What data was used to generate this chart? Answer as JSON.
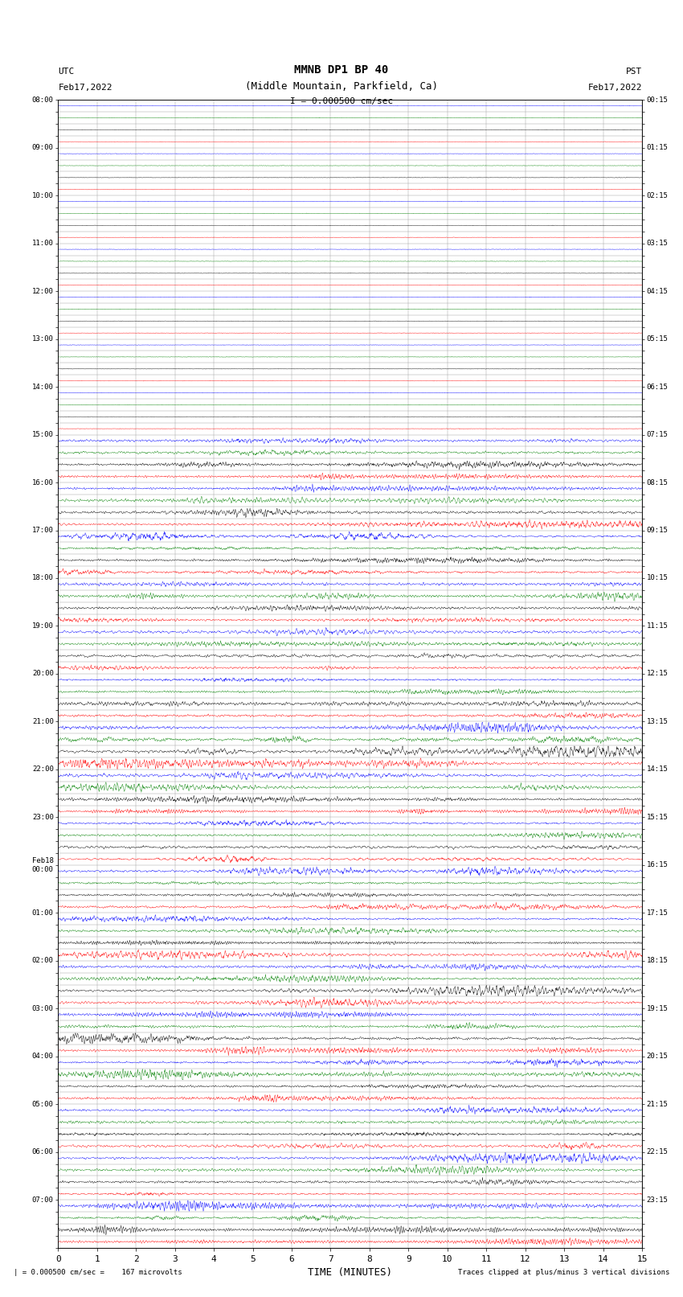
{
  "title_line1": "MMNB DP1 BP 40",
  "title_line2": "(Middle Mountain, Parkfield, Ca)",
  "scale_text": "I = 0.000500 cm/sec",
  "utc_label": "UTC",
  "pst_label": "PST",
  "date_left": "Feb17,2022",
  "date_right": "Feb17,2022",
  "xlabel": "TIME (MINUTES)",
  "footer_left": "| = 0.000500 cm/sec =    167 microvolts",
  "footer_right": "Traces clipped at plus/minus 3 vertical divisions",
  "utc_row_labels": {
    "0": "08:00",
    "4": "09:00",
    "8": "10:00",
    "12": "11:00",
    "16": "12:00",
    "20": "13:00",
    "24": "14:00",
    "28": "15:00",
    "32": "16:00",
    "36": "17:00",
    "40": "18:00",
    "44": "19:00",
    "48": "20:00",
    "52": "21:00",
    "56": "22:00",
    "60": "23:00",
    "64": "Feb18\n00:00",
    "68": "01:00",
    "72": "02:00",
    "76": "03:00",
    "80": "04:00",
    "84": "05:00",
    "88": "06:00",
    "92": "07:00"
  },
  "pst_row_labels": {
    "0": "00:15",
    "4": "01:15",
    "8": "02:15",
    "12": "03:15",
    "16": "04:15",
    "20": "05:15",
    "24": "06:15",
    "28": "07:15",
    "32": "08:15",
    "36": "09:15",
    "40": "10:15",
    "44": "11:15",
    "48": "12:15",
    "52": "13:15",
    "56": "14:15",
    "60": "15:15",
    "64": "16:15",
    "68": "17:15",
    "72": "18:15",
    "76": "19:15",
    "80": "20:15",
    "84": "21:15",
    "88": "22:15",
    "92": "23:15"
  },
  "n_rows": 96,
  "n_quiet_rows": 28,
  "colors_cycle": [
    "#0000ff",
    "#008000",
    "#000000",
    "#ff0000"
  ],
  "bg_color": "#ffffff",
  "grid_color": "#999999",
  "text_color": "#000000",
  "figwidth": 8.5,
  "figheight": 16.13,
  "dpi": 100,
  "xmin": 0,
  "xmax": 15,
  "xticks": [
    0,
    1,
    2,
    3,
    4,
    5,
    6,
    7,
    8,
    9,
    10,
    11,
    12,
    13,
    14,
    15
  ],
  "seed": 42
}
